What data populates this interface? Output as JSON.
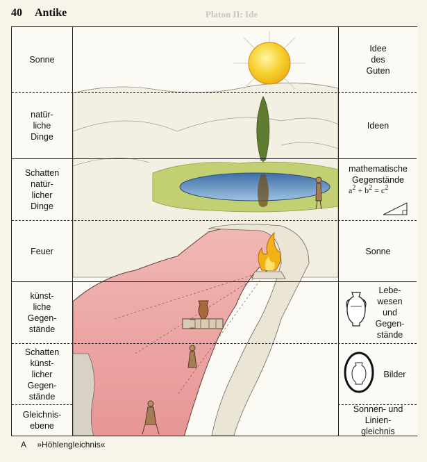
{
  "page": {
    "number": "40",
    "title": "Antike",
    "ghost_header": "Platon II: Ide"
  },
  "left_column": [
    {
      "id": "sonne",
      "label": "Sonne"
    },
    {
      "id": "natuerliche-dinge",
      "label": "natür-\nliche\nDinge"
    },
    {
      "id": "schatten-natuerlicher-dinge",
      "label": "Schatten\nnatür-\nlicher\nDinge"
    },
    {
      "id": "feuer",
      "label": "Feuer"
    },
    {
      "id": "kuenstliche-gegenstaende",
      "label": "künst-\nliche\nGegen-\nstände"
    },
    {
      "id": "schatten-kuenstlicher-gegenstaende",
      "label": "Schatten\nkünst-\nlicher\nGegen-\nstände"
    },
    {
      "id": "gleichnisebene",
      "label": "Gleichnis-\nebene"
    }
  ],
  "right_column": [
    {
      "id": "idee-des-guten",
      "label": "Idee\ndes\nGuten"
    },
    {
      "id": "ideen",
      "label": "Ideen"
    },
    {
      "id": "mathematische-gegenstaende",
      "label": "mathematische\nGegenstände"
    },
    {
      "id": "sonne-right",
      "label": "Sonne"
    },
    {
      "id": "lebewesen",
      "label": "Lebe-\nwesen\nund\nGegen-\nstände"
    },
    {
      "id": "bilder",
      "label": "Bilder"
    },
    {
      "id": "sonnen-linien-gleichnis",
      "label": "Sonnen- und\nLinien-\ngleichnis"
    }
  ],
  "formula": {
    "lhs": "a",
    "plus": " + b",
    "rhs": " = c",
    "exp": "2"
  },
  "caption": {
    "letter": "A",
    "text": "»Höhlengleichnis«"
  },
  "colors": {
    "sun": "#f5cc22",
    "cave": "#e9a8a8",
    "water": "#6f9fcd",
    "grass": "#b9c868",
    "fire": "#f3b017"
  }
}
